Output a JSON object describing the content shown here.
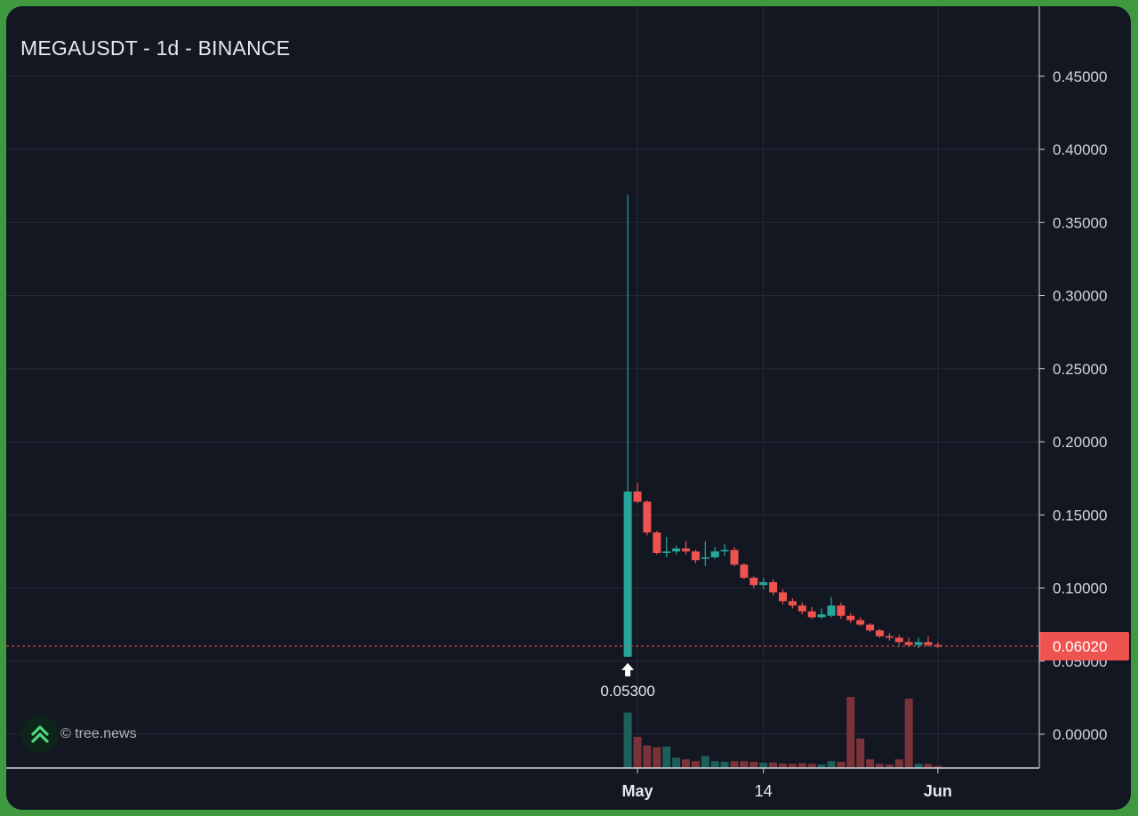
{
  "header": {
    "title": "MEGAUSDT - 1d - BINANCE"
  },
  "watermark": {
    "text": "© tree.news",
    "icon": "tree-news-logo-icon"
  },
  "colors": {
    "background": "#131722",
    "frame": "#3f9a3f",
    "up": "#26a69a",
    "down": "#ef5350",
    "up_volume": "#1d5f59",
    "down_volume": "#7a3338",
    "grid": "#242a36",
    "text": "#e6e8ee"
  },
  "chart_data": {
    "type": "candlestick",
    "title": "MEGAUSDT - 1d - BINANCE",
    "x_ticks": [
      {
        "label": "May",
        "index": 0
      },
      {
        "label": "14",
        "index": 13
      },
      {
        "label": "Jun",
        "index": 31
      }
    ],
    "y_ticks": [
      "0.45000",
      "0.40000",
      "0.35000",
      "0.30000",
      "0.25000",
      "0.20000",
      "0.15000",
      "0.10000",
      "0.05000",
      "0.00000"
    ],
    "ylim": [
      -0.022,
      0.487
    ],
    "grid": true,
    "last_price": {
      "value": 0.0602,
      "label": "0.06020"
    },
    "annotation": {
      "label": "0.05300",
      "value": 0.053,
      "index": -1,
      "marker": "arrow-up-icon"
    },
    "candles": [
      {
        "index": -1,
        "open": 0.053,
        "high": 0.369,
        "low": 0.053,
        "close": 0.166,
        "volume": 0.16
      },
      {
        "index": 0,
        "open": 0.166,
        "high": 0.172,
        "low": 0.158,
        "close": 0.159,
        "volume": 0.09
      },
      {
        "index": 1,
        "open": 0.159,
        "high": 0.16,
        "low": 0.136,
        "close": 0.138,
        "volume": 0.065
      },
      {
        "index": 2,
        "open": 0.138,
        "high": 0.139,
        "low": 0.123,
        "close": 0.124,
        "volume": 0.06
      },
      {
        "index": 3,
        "open": 0.124,
        "high": 0.135,
        "low": 0.121,
        "close": 0.125,
        "volume": 0.062
      },
      {
        "index": 4,
        "open": 0.125,
        "high": 0.129,
        "low": 0.123,
        "close": 0.127,
        "volume": 0.03
      },
      {
        "index": 5,
        "open": 0.127,
        "high": 0.132,
        "low": 0.123,
        "close": 0.125,
        "volume": 0.025
      },
      {
        "index": 6,
        "open": 0.125,
        "high": 0.126,
        "low": 0.117,
        "close": 0.119,
        "volume": 0.02
      },
      {
        "index": 7,
        "open": 0.12,
        "high": 0.132,
        "low": 0.115,
        "close": 0.121,
        "volume": 0.035
      },
      {
        "index": 8,
        "open": 0.121,
        "high": 0.128,
        "low": 0.12,
        "close": 0.125,
        "volume": 0.02
      },
      {
        "index": 9,
        "open": 0.125,
        "high": 0.13,
        "low": 0.122,
        "close": 0.126,
        "volume": 0.018
      },
      {
        "index": 10,
        "open": 0.126,
        "high": 0.128,
        "low": 0.115,
        "close": 0.116,
        "volume": 0.02
      },
      {
        "index": 11,
        "open": 0.116,
        "high": 0.117,
        "low": 0.106,
        "close": 0.107,
        "volume": 0.02
      },
      {
        "index": 12,
        "open": 0.107,
        "high": 0.108,
        "low": 0.1,
        "close": 0.102,
        "volume": 0.018
      },
      {
        "index": 13,
        "open": 0.102,
        "high": 0.107,
        "low": 0.099,
        "close": 0.104,
        "volume": 0.015
      },
      {
        "index": 14,
        "open": 0.104,
        "high": 0.106,
        "low": 0.095,
        "close": 0.097,
        "volume": 0.016
      },
      {
        "index": 15,
        "open": 0.097,
        "high": 0.099,
        "low": 0.089,
        "close": 0.091,
        "volume": 0.013
      },
      {
        "index": 16,
        "open": 0.091,
        "high": 0.093,
        "low": 0.086,
        "close": 0.088,
        "volume": 0.012
      },
      {
        "index": 17,
        "open": 0.088,
        "high": 0.09,
        "low": 0.082,
        "close": 0.084,
        "volume": 0.014
      },
      {
        "index": 18,
        "open": 0.084,
        "high": 0.087,
        "low": 0.079,
        "close": 0.08,
        "volume": 0.012
      },
      {
        "index": 19,
        "open": 0.08,
        "high": 0.086,
        "low": 0.079,
        "close": 0.082,
        "volume": 0.01
      },
      {
        "index": 20,
        "open": 0.081,
        "high": 0.094,
        "low": 0.08,
        "close": 0.088,
        "volume": 0.02
      },
      {
        "index": 21,
        "open": 0.088,
        "high": 0.09,
        "low": 0.079,
        "close": 0.081,
        "volume": 0.018
      },
      {
        "index": 22,
        "open": 0.081,
        "high": 0.083,
        "low": 0.076,
        "close": 0.078,
        "volume": 0.205
      },
      {
        "index": 23,
        "open": 0.078,
        "high": 0.08,
        "low": 0.074,
        "close": 0.075,
        "volume": 0.085
      },
      {
        "index": 24,
        "open": 0.075,
        "high": 0.076,
        "low": 0.07,
        "close": 0.071,
        "volume": 0.025
      },
      {
        "index": 25,
        "open": 0.071,
        "high": 0.072,
        "low": 0.066,
        "close": 0.067,
        "volume": 0.012
      },
      {
        "index": 26,
        "open": 0.067,
        "high": 0.069,
        "low": 0.064,
        "close": 0.066,
        "volume": 0.01
      },
      {
        "index": 27,
        "open": 0.066,
        "high": 0.068,
        "low": 0.061,
        "close": 0.063,
        "volume": 0.025
      },
      {
        "index": 28,
        "open": 0.063,
        "high": 0.066,
        "low": 0.06,
        "close": 0.061,
        "volume": 0.2
      },
      {
        "index": 29,
        "open": 0.061,
        "high": 0.066,
        "low": 0.059,
        "close": 0.063,
        "volume": 0.012
      },
      {
        "index": 30,
        "open": 0.063,
        "high": 0.067,
        "low": 0.06,
        "close": 0.061,
        "volume": 0.012
      },
      {
        "index": 31,
        "open": 0.061,
        "high": 0.063,
        "low": 0.059,
        "close": 0.0602,
        "volume": 0.006
      }
    ]
  }
}
